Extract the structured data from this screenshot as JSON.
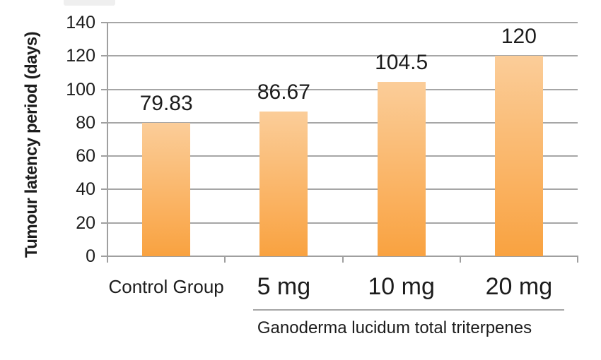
{
  "chart_data": {
    "type": "bar",
    "categories": [
      "Control Group",
      "5 mg",
      "10 mg",
      "20 mg"
    ],
    "values": [
      79.83,
      86.67,
      104.5,
      120
    ],
    "value_labels": [
      "79.83",
      "86.67",
      "104.5",
      "120"
    ],
    "ylabel": "Tumour latency period (days)",
    "xlabel": "",
    "yticks": [
      0,
      20,
      40,
      60,
      80,
      100,
      120,
      140
    ],
    "ylim": [
      0,
      140
    ],
    "grid": true,
    "legend": false,
    "group_label": "Ganoderma lucidum total triterpenes",
    "group_categories": [
      "5 mg",
      "10 mg",
      "20 mg"
    ],
    "colors": {
      "bar_gradient_top": "#fbcd99",
      "bar_gradient_bottom": "#f9a240",
      "gridline": "#a6a6a6",
      "axis": "#9f9f9f",
      "text": "#1c1c1c",
      "background": "#ffffff",
      "artifact": "#efefef"
    }
  }
}
